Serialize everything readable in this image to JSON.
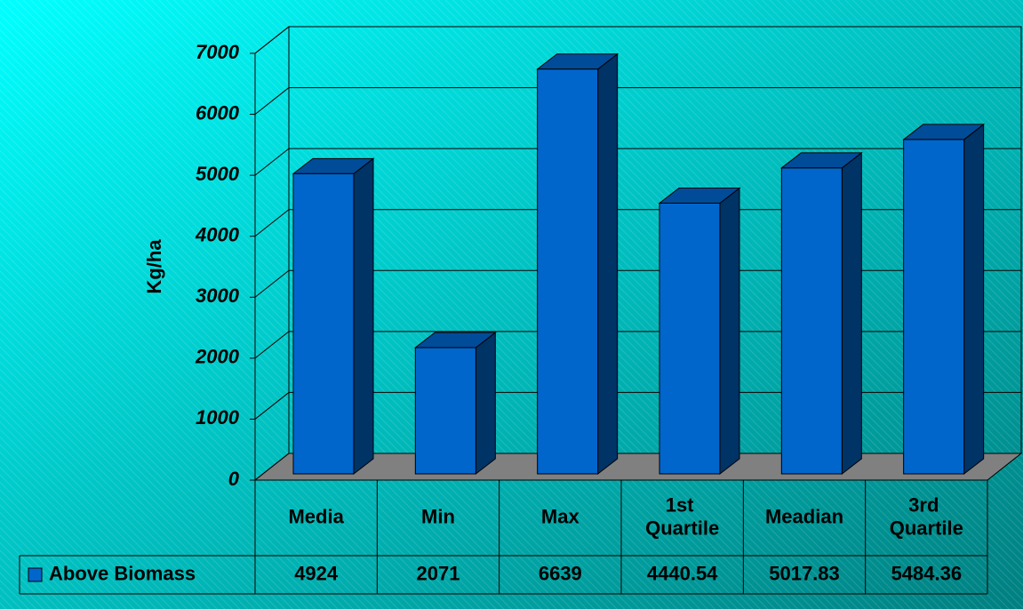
{
  "chart_data": {
    "type": "bar3d",
    "y_label": "Kg/ha",
    "categories": [
      "Media",
      "Min",
      "Max",
      "1st Quartile",
      "Meadian",
      "3rd Quartile"
    ],
    "series": [
      {
        "name": "Above Biomass",
        "color": "#0066cc",
        "values": [
          4924,
          2071,
          6639,
          4440.54,
          5017.83,
          5484.36
        ]
      }
    ],
    "ylim": [
      0,
      7000
    ],
    "yticks": [
      0,
      1000,
      2000,
      3000,
      4000,
      5000,
      6000,
      7000
    ],
    "grid": true,
    "data_table": true
  }
}
